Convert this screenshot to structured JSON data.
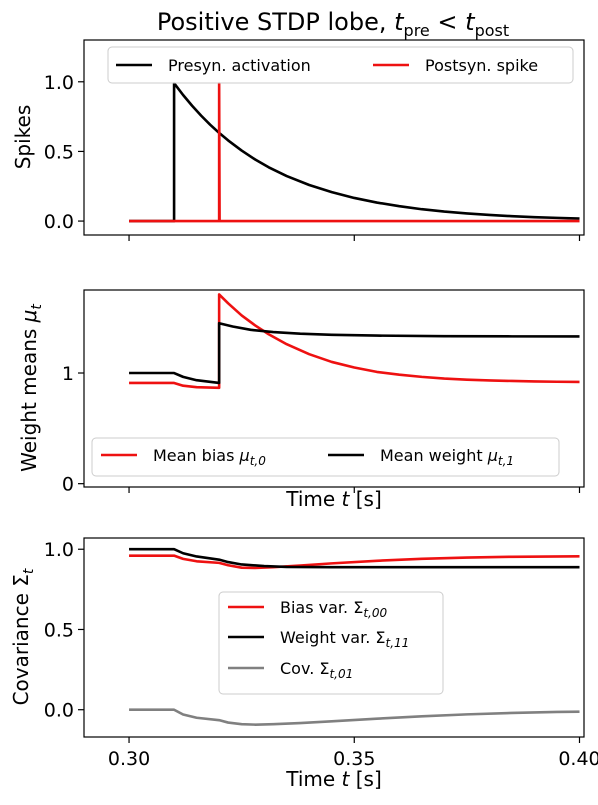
{
  "figure": {
    "title": "Positive STDP lobe, t_pre < t_post",
    "title_main": "Positive STDP lobe, ",
    "title_t": "t",
    "title_pre": "pre",
    "title_lt": " < ",
    "title_post": "post"
  },
  "colors": {
    "red": "#ee1111",
    "black": "#000000",
    "gray": "#808080"
  },
  "chart_data": [
    {
      "type": "line",
      "ylabel": "Spikes",
      "xlim": [
        0.29,
        0.401
      ],
      "ylim": [
        -0.1,
        1.3
      ],
      "xticks": [
        0.3,
        0.35,
        0.4
      ],
      "yticks": [
        {
          "value": 0.0,
          "label": "0.0"
        },
        {
          "value": 0.5,
          "label": "0.5"
        },
        {
          "value": 1.0,
          "label": "1.0"
        }
      ],
      "legend_position": "top-center",
      "legend_columns": 2,
      "series": [
        {
          "name": "Presyn. activation",
          "color": "#000000",
          "points": [
            [
              0.3,
              0.0
            ],
            [
              0.31,
              0.0
            ],
            [
              0.31,
              0.99
            ],
            [
              0.312,
              0.905
            ],
            [
              0.314,
              0.828
            ],
            [
              0.316,
              0.757
            ],
            [
              0.318,
              0.692
            ],
            [
              0.32,
              0.633
            ],
            [
              0.322,
              0.579
            ],
            [
              0.325,
              0.506
            ],
            [
              0.328,
              0.442
            ],
            [
              0.331,
              0.386
            ],
            [
              0.335,
              0.323
            ],
            [
              0.34,
              0.259
            ],
            [
              0.345,
              0.208
            ],
            [
              0.35,
              0.166
            ],
            [
              0.355,
              0.133
            ],
            [
              0.36,
              0.107
            ],
            [
              0.365,
              0.085
            ],
            [
              0.37,
              0.068
            ],
            [
              0.375,
              0.055
            ],
            [
              0.38,
              0.044
            ],
            [
              0.385,
              0.035
            ],
            [
              0.39,
              0.028
            ],
            [
              0.395,
              0.023
            ],
            [
              0.4,
              0.018
            ]
          ]
        },
        {
          "name": "Postsyn. spike",
          "color": "#ee1111",
          "points": [
            [
              0.3,
              0.0
            ],
            [
              0.32,
              0.0
            ],
            [
              0.32,
              0.99
            ],
            [
              0.3201,
              0.0
            ],
            [
              0.4,
              0.0
            ]
          ]
        }
      ]
    },
    {
      "type": "line",
      "ylabel": "Weight means μt",
      "ylabel_main": "Weight means ",
      "ylabel_mu": "μ",
      "ylabel_sub": "t",
      "xlabel": "Time t [s]",
      "xlabel_main": "Time ",
      "xlabel_t": "t",
      "xlabel_unit": " [s]",
      "xlim": [
        0.29,
        0.401
      ],
      "ylim": [
        -0.03,
        1.75
      ],
      "xticks": [
        0.3,
        0.35,
        0.4
      ],
      "yticks": [
        {
          "value": 0,
          "label": "0"
        },
        {
          "value": 1,
          "label": "1"
        }
      ],
      "legend_position": "bottom",
      "legend_columns": 2,
      "series": [
        {
          "name": "Mean bias μt,0",
          "name_main": "Mean bias ",
          "name_mu": "μ",
          "name_sub": "t,0",
          "color": "#ee1111",
          "points": [
            [
              0.3,
              0.91
            ],
            [
              0.31,
              0.91
            ],
            [
              0.312,
              0.885
            ],
            [
              0.315,
              0.872
            ],
            [
              0.32,
              0.866
            ],
            [
              0.32,
              1.71
            ],
            [
              0.322,
              1.63
            ],
            [
              0.325,
              1.52
            ],
            [
              0.328,
              1.43
            ],
            [
              0.331,
              1.35
            ],
            [
              0.335,
              1.26
            ],
            [
              0.34,
              1.17
            ],
            [
              0.345,
              1.1
            ],
            [
              0.35,
              1.05
            ],
            [
              0.355,
              1.01
            ],
            [
              0.36,
              0.985
            ],
            [
              0.365,
              0.965
            ],
            [
              0.37,
              0.95
            ],
            [
              0.375,
              0.94
            ],
            [
              0.38,
              0.933
            ],
            [
              0.385,
              0.928
            ],
            [
              0.39,
              0.924
            ],
            [
              0.395,
              0.921
            ],
            [
              0.4,
              0.919
            ]
          ]
        },
        {
          "name": "Mean weight μt,1",
          "name_main": "Mean weight ",
          "name_mu": "μ",
          "name_sub": "t,1",
          "color": "#000000",
          "points": [
            [
              0.3,
              1.0
            ],
            [
              0.31,
              1.0
            ],
            [
              0.312,
              0.965
            ],
            [
              0.315,
              0.935
            ],
            [
              0.32,
              0.91
            ],
            [
              0.32,
              1.45
            ],
            [
              0.323,
              1.42
            ],
            [
              0.327,
              1.39
            ],
            [
              0.332,
              1.37
            ],
            [
              0.338,
              1.355
            ],
            [
              0.345,
              1.345
            ],
            [
              0.355,
              1.338
            ],
            [
              0.37,
              1.333
            ],
            [
              0.385,
              1.331
            ],
            [
              0.4,
              1.33
            ]
          ]
        }
      ]
    },
    {
      "type": "line",
      "ylabel": "Covariance Σt",
      "ylabel_main": "Covariance ",
      "ylabel_sym": "Σ",
      "ylabel_sub": "t",
      "xlabel": "Time t [s]",
      "xlabel_main": "Time ",
      "xlabel_t": "t",
      "xlabel_unit": " [s]",
      "xlim": [
        0.29,
        0.401
      ],
      "ylim": [
        -0.17,
        1.07
      ],
      "xticks": [
        {
          "value": 0.3,
          "label": "0.30"
        },
        {
          "value": 0.35,
          "label": "0.35"
        },
        {
          "value": 0.4,
          "label": "0.40"
        }
      ],
      "yticks": [
        {
          "value": 0.0,
          "label": "0.0"
        },
        {
          "value": 0.5,
          "label": "0.5"
        },
        {
          "value": 1.0,
          "label": "1.0"
        }
      ],
      "legend_position": "center",
      "legend_columns": 1,
      "series": [
        {
          "name": "Bias var. Σt,00",
          "name_main": "Bias var. ",
          "name_sym": "Σ",
          "name_sub": "t,00",
          "color": "#ee1111",
          "points": [
            [
              0.3,
              0.96
            ],
            [
              0.31,
              0.96
            ],
            [
              0.312,
              0.94
            ],
            [
              0.315,
              0.925
            ],
            [
              0.32,
              0.915
            ],
            [
              0.322,
              0.9
            ],
            [
              0.325,
              0.885
            ],
            [
              0.328,
              0.883
            ],
            [
              0.332,
              0.888
            ],
            [
              0.338,
              0.898
            ],
            [
              0.345,
              0.912
            ],
            [
              0.355,
              0.928
            ],
            [
              0.365,
              0.94
            ],
            [
              0.375,
              0.948
            ],
            [
              0.385,
              0.953
            ],
            [
              0.4,
              0.956
            ]
          ]
        },
        {
          "name": "Weight var. Σt,11",
          "name_main": "Weight var. ",
          "name_sym": "Σ",
          "name_sub": "t,11",
          "color": "#000000",
          "points": [
            [
              0.3,
              1.0
            ],
            [
              0.31,
              1.0
            ],
            [
              0.312,
              0.975
            ],
            [
              0.315,
              0.955
            ],
            [
              0.32,
              0.935
            ],
            [
              0.322,
              0.92
            ],
            [
              0.325,
              0.905
            ],
            [
              0.33,
              0.895
            ],
            [
              0.335,
              0.89
            ],
            [
              0.345,
              0.888
            ],
            [
              0.4,
              0.888
            ]
          ]
        },
        {
          "name": "Cov. Σt,01",
          "name_main": "Cov. ",
          "name_sym": "Σ",
          "name_sub": "t,01",
          "color": "#808080",
          "points": [
            [
              0.3,
              0.0
            ],
            [
              0.31,
              0.0
            ],
            [
              0.312,
              -0.03
            ],
            [
              0.315,
              -0.05
            ],
            [
              0.32,
              -0.065
            ],
            [
              0.322,
              -0.08
            ],
            [
              0.325,
              -0.09
            ],
            [
              0.328,
              -0.093
            ],
            [
              0.332,
              -0.09
            ],
            [
              0.338,
              -0.083
            ],
            [
              0.345,
              -0.072
            ],
            [
              0.355,
              -0.056
            ],
            [
              0.365,
              -0.041
            ],
            [
              0.375,
              -0.029
            ],
            [
              0.385,
              -0.02
            ],
            [
              0.395,
              -0.014
            ],
            [
              0.4,
              -0.012
            ]
          ]
        }
      ]
    }
  ]
}
